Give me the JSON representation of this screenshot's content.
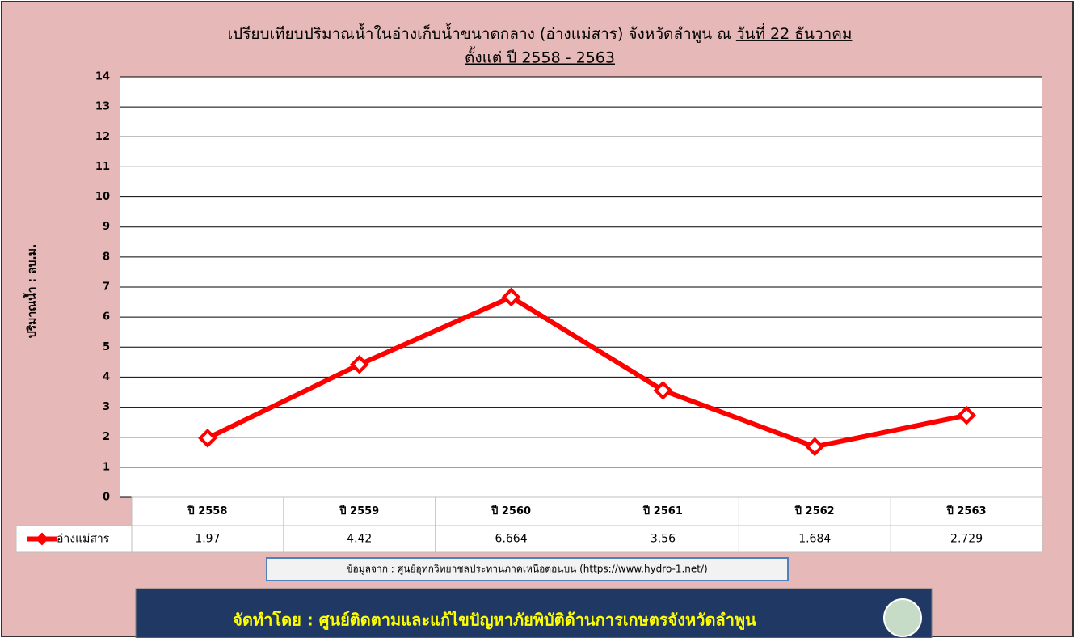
{
  "chart_data": {
    "type": "line",
    "title": "เปรียบเทียบปริมาณน้ำในอ่างเก็บน้ำขนาดกลาง  (อ่างแม่สาร) จังหวัดลำพูน ณ",
    "title_date": "วันที่ 22  ธันวาคม",
    "subtitle": "ตั้งแต่ ปี 2558 - 2563",
    "ylabel": "ปริมาณน้ำ : ลบ.ม.",
    "categories": [
      "ปี 2558",
      "ปี 2559",
      "ปี 2560",
      "ปี 2561",
      "ปี 2562",
      "ปี 2563"
    ],
    "series": [
      {
        "name": "อ่างแม่สาร",
        "color": "#ff0000",
        "values": [
          1.97,
          4.42,
          6.664,
          3.56,
          1.684,
          2.729
        ]
      }
    ],
    "ylim": [
      0,
      14
    ],
    "yticks": [
      0,
      1,
      2,
      3,
      4,
      5,
      6,
      7,
      8,
      9,
      10,
      11,
      12,
      13,
      14
    ],
    "grid": true,
    "source": "ข้อมูลจาก  : ศูนย์อุทกวิทยาชลประทานภาคเหนือตอนบน (https://www.hydro-1.net/)",
    "footer": "จัดทำโดย : ศูนย์ติดตามและแก้ไขปัญหาภัยพิบัติด้านการเกษตรจังหวัดลำพูน"
  }
}
